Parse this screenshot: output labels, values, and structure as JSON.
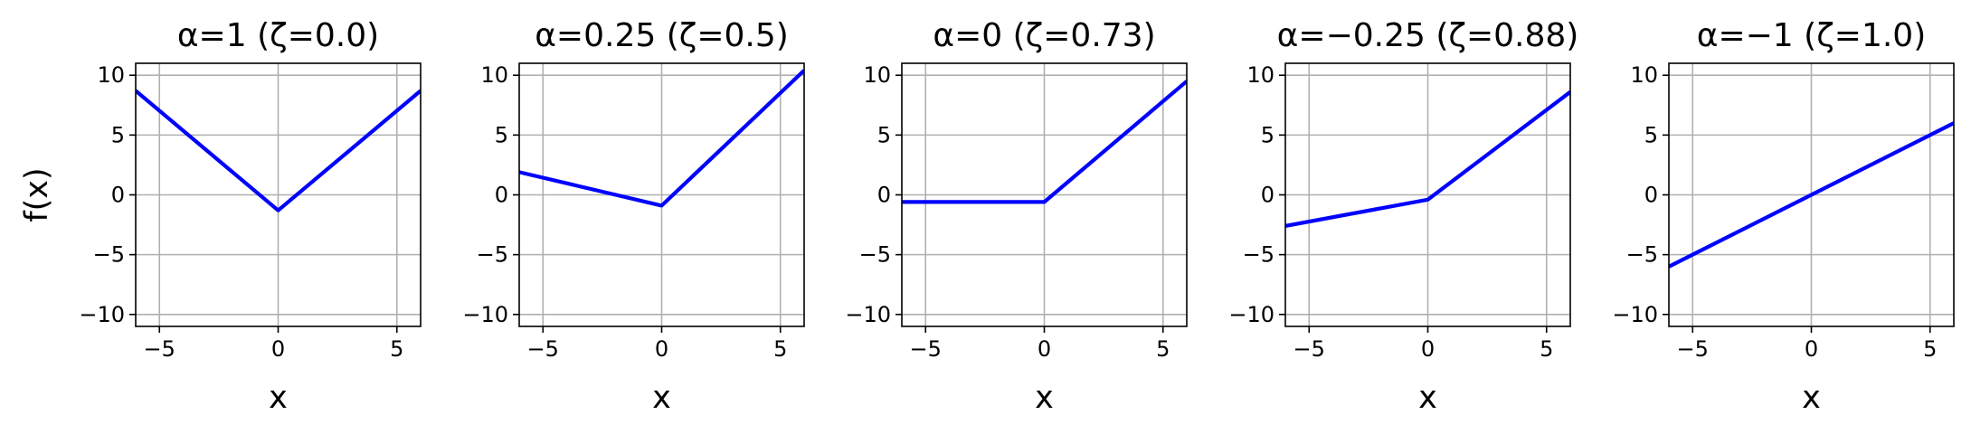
{
  "colors": {
    "line": "#0000ff",
    "grid": "#b0b0b0",
    "axis": "#000000"
  },
  "chart_data": [
    {
      "type": "line",
      "title": "α=1 (ζ=0.0)",
      "xlabel": "x",
      "ylabel": "f(x)",
      "xlim": [
        -6,
        6
      ],
      "ylim": [
        -11,
        11
      ],
      "xticks": [
        -5,
        0,
        5
      ],
      "xticklabels": [
        "−5",
        "0",
        "5"
      ],
      "yticks": [
        10,
        5,
        0,
        -5,
        -10
      ],
      "yticklabels": [
        "10",
        "5",
        "0",
        "−5",
        "−10"
      ],
      "grid": true,
      "series": [
        {
          "x": [
            -6,
            0,
            6
          ],
          "y": [
            8.7,
            -1.3,
            8.7
          ]
        }
      ]
    },
    {
      "type": "line",
      "title": "α=0.25 (ζ=0.5)",
      "xlabel": "x",
      "ylabel": "",
      "xlim": [
        -6,
        6
      ],
      "ylim": [
        -11,
        11
      ],
      "xticks": [
        -5,
        0,
        5
      ],
      "xticklabels": [
        "−5",
        "0",
        "5"
      ],
      "yticks": [
        10,
        5,
        0,
        -5,
        -10
      ],
      "yticklabels": [
        "10",
        "5",
        "0",
        "−5",
        "−10"
      ],
      "grid": true,
      "series": [
        {
          "x": [
            -6,
            0,
            6
          ],
          "y": [
            1.9,
            -0.9,
            10.4
          ]
        }
      ]
    },
    {
      "type": "line",
      "title": "α=0 (ζ=0.73)",
      "xlabel": "x",
      "ylabel": "",
      "xlim": [
        -6,
        6
      ],
      "ylim": [
        -11,
        11
      ],
      "xticks": [
        -5,
        0,
        5
      ],
      "xticklabels": [
        "−5",
        "0",
        "5"
      ],
      "yticks": [
        10,
        5,
        0,
        -5,
        -10
      ],
      "yticklabels": [
        "10",
        "5",
        "0",
        "−5",
        "−10"
      ],
      "grid": true,
      "series": [
        {
          "x": [
            -6,
            0,
            6
          ],
          "y": [
            -0.6,
            -0.6,
            9.5
          ]
        }
      ]
    },
    {
      "type": "line",
      "title": "α=−0.25 (ζ=0.88)",
      "xlabel": "x",
      "ylabel": "",
      "xlim": [
        -6,
        6
      ],
      "ylim": [
        -11,
        11
      ],
      "xticks": [
        -5,
        0,
        5
      ],
      "xticklabels": [
        "−5",
        "0",
        "5"
      ],
      "yticks": [
        10,
        5,
        0,
        -5,
        -10
      ],
      "yticklabels": [
        "10",
        "5",
        "0",
        "−5",
        "−10"
      ],
      "grid": true,
      "series": [
        {
          "x": [
            -6,
            0,
            6
          ],
          "y": [
            -2.6,
            -0.4,
            8.6
          ]
        }
      ]
    },
    {
      "type": "line",
      "title": "α=−1 (ζ=1.0)",
      "xlabel": "x",
      "ylabel": "",
      "xlim": [
        -6,
        6
      ],
      "ylim": [
        -11,
        11
      ],
      "xticks": [
        -5,
        0,
        5
      ],
      "xticklabels": [
        "−5",
        "0",
        "5"
      ],
      "yticks": [
        10,
        5,
        0,
        -5,
        -10
      ],
      "yticklabels": [
        "10",
        "5",
        "0",
        "−5",
        "−10"
      ],
      "grid": true,
      "series": [
        {
          "x": [
            -6,
            6
          ],
          "y": [
            -6.0,
            6.0
          ]
        }
      ]
    }
  ]
}
